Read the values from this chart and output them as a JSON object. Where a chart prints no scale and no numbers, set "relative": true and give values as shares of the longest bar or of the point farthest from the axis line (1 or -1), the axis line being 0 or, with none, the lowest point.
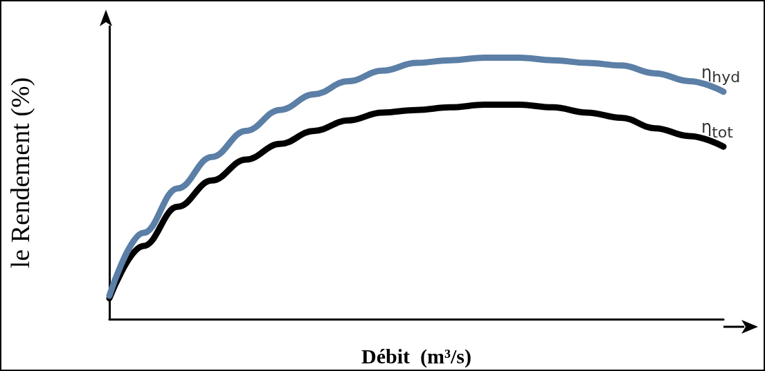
{
  "chart_data": {
    "type": "line",
    "relative": true,
    "xlabel": "Débit  (m³/s)",
    "ylabel": "le Rendement (%)",
    "legend": false,
    "grid": false,
    "line_style": "solid",
    "categories": [
      null,
      null,
      null,
      null,
      null,
      null,
      null,
      null,
      null,
      null,
      null,
      null,
      null,
      null,
      null,
      null,
      null,
      null,
      null
    ],
    "series": [
      {
        "name": "η$_{hyd}$",
        "color": "#5b7fa6",
        "values": [
          0.09,
          0.33,
          0.5,
          0.62,
          0.72,
          0.8,
          0.86,
          0.91,
          0.95,
          0.98,
          0.99,
          1.0,
          1.0,
          0.99,
          0.98,
          0.97,
          0.94,
          0.91,
          0.87
        ]
      },
      {
        "name": "η$_{tot}$",
        "color": "#000000",
        "values": [
          0.08,
          0.28,
          0.43,
          0.53,
          0.61,
          0.67,
          0.72,
          0.76,
          0.79,
          0.8,
          0.81,
          0.82,
          0.82,
          0.81,
          0.79,
          0.77,
          0.73,
          0.7,
          0.66
        ]
      }
    ]
  }
}
